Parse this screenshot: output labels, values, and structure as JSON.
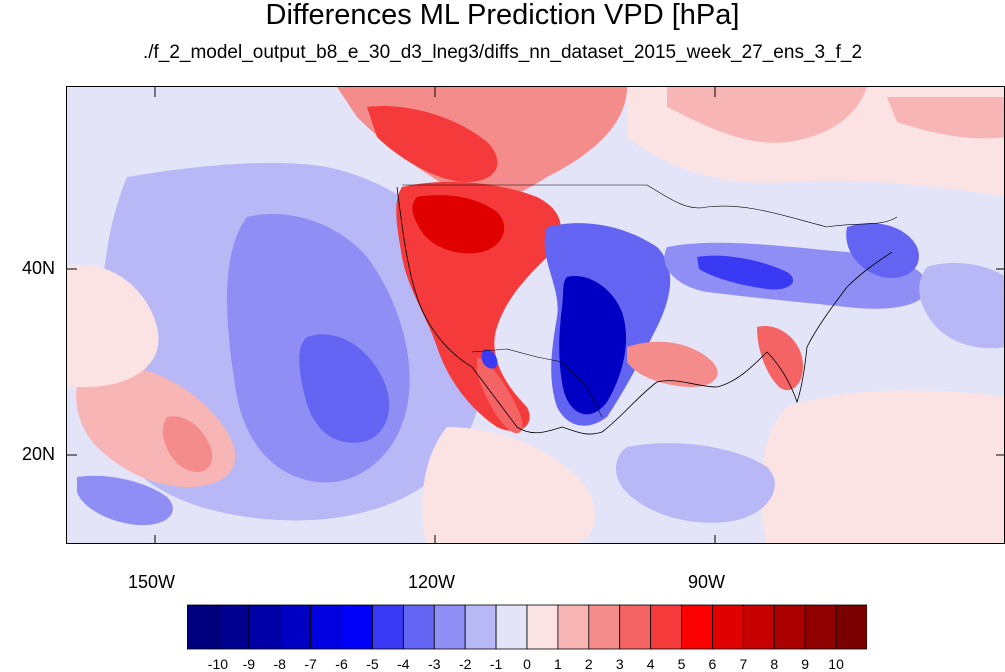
{
  "title": "Differences ML Prediction VPD [hPa]",
  "subtitle": "./f_2_model_output_b8_e_30_d3_lneg3/diffs_nn_dataset_2015_week_27_ens_3_f_2",
  "map": {
    "region": "North America and eastern Pacific",
    "lon_range": [
      -160,
      -60
    ],
    "lat_range": [
      10,
      59
    ],
    "x_ticks": [
      {
        "value": -150,
        "label": "150W"
      },
      {
        "value": -120,
        "label": "120W"
      },
      {
        "value": -90,
        "label": "90W"
      }
    ],
    "y_ticks": [
      {
        "value": 40,
        "label": "40N"
      },
      {
        "value": 20,
        "label": "20N"
      }
    ]
  },
  "colorbar": {
    "labels": [
      "-10",
      "-9",
      "-8",
      "-7",
      "-6",
      "-5",
      "-4",
      "-3",
      "-2",
      "-1",
      "0",
      "1",
      "2",
      "3",
      "4",
      "5",
      "6",
      "7",
      "8",
      "9",
      "10"
    ],
    "colors": [
      "#00007f",
      "#00008f",
      "#0000a8",
      "#0000c4",
      "#0000e0",
      "#0000fa",
      "#3a3af5",
      "#6464f3",
      "#8e8ef5",
      "#b8b8f7",
      "#e4e4f8",
      "#fbe3e3",
      "#f7b5b5",
      "#f58c8c",
      "#f46464",
      "#f43a3a",
      "#fa0000",
      "#e00000",
      "#c60000",
      "#aa0000",
      "#900000",
      "#7a0000"
    ]
  }
}
